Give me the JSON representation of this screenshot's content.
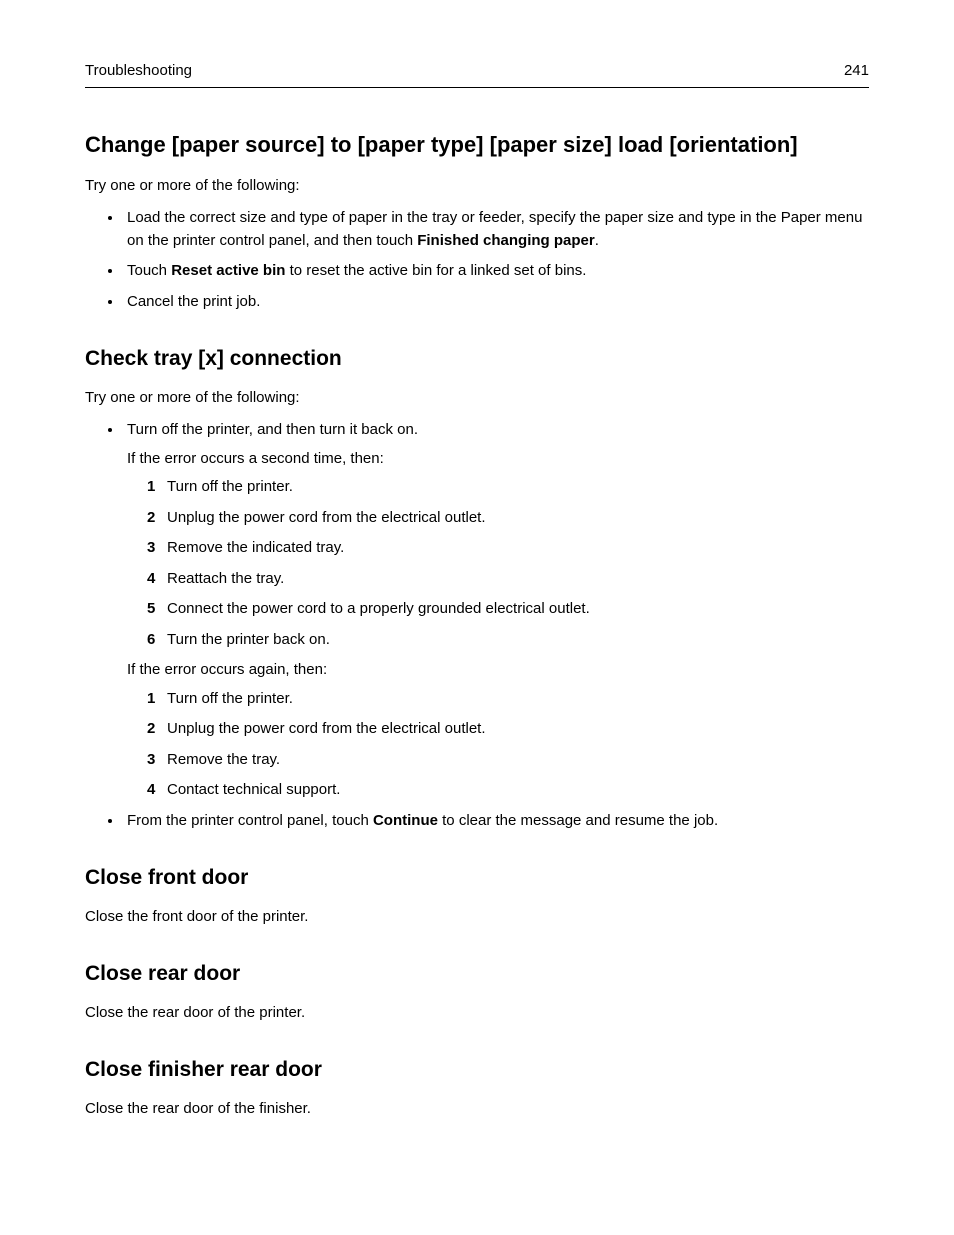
{
  "header": {
    "section": "Troubleshooting",
    "page": "241"
  },
  "sections": {
    "s1": {
      "heading": "Change [paper source] to [paper type] [paper size] load [orientation]",
      "intro": "Try one or more of the following:",
      "b1_pre": "Load the correct size and type of paper in the tray or feeder, specify the paper size and type in the Paper menu on the printer control panel, and then touch ",
      "b1_bold": "Finished changing paper",
      "b1_post": ".",
      "b2_pre": "Touch ",
      "b2_bold": "Reset active bin",
      "b2_post": " to reset the active bin for a linked set of bins.",
      "b3": "Cancel the print job."
    },
    "s2": {
      "heading": "Check tray [x] connection",
      "intro": "Try one or more of the following:",
      "b1": "Turn off the printer, and then turn it back on.",
      "b1_sub1": "If the error occurs a second time, then:",
      "ol1": {
        "i1": "Turn off the printer.",
        "i2": "Unplug the power cord from the electrical outlet.",
        "i3": "Remove the indicated tray.",
        "i4": "Reattach the tray.",
        "i5": "Connect the power cord to a properly grounded electrical outlet.",
        "i6": "Turn the printer back on."
      },
      "b1_sub2": "If the error occurs again, then:",
      "ol2": {
        "i1": "Turn off the printer.",
        "i2": "Unplug the power cord from the electrical outlet.",
        "i3": "Remove the tray.",
        "i4": "Contact technical support."
      },
      "b2_pre": "From the printer control panel, touch ",
      "b2_bold": "Continue",
      "b2_post": " to clear the message and resume the job."
    },
    "s3": {
      "heading": "Close front door",
      "body": "Close the front door of the printer."
    },
    "s4": {
      "heading": "Close rear door",
      "body": "Close the rear door of the printer."
    },
    "s5": {
      "heading": "Close finisher rear door",
      "body": "Close the rear door of the finisher."
    }
  }
}
